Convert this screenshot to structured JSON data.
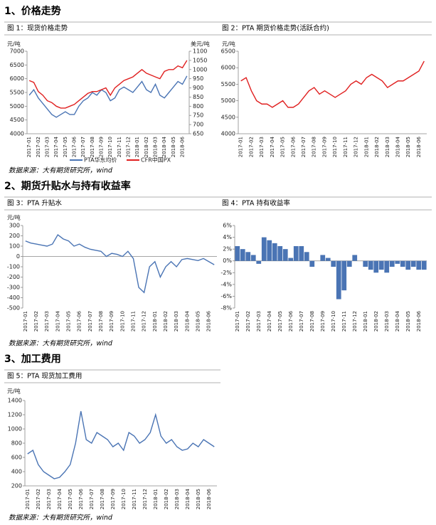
{
  "sections": [
    {
      "heading": "1、价格走势",
      "source": "数据来源：大有期货研究所，wind"
    },
    {
      "heading": "2、期货升贴水与持有收益率",
      "source": "数据来源：大有期货研究所，wind"
    },
    {
      "heading": "3、加工费用",
      "source": "数据来源：大有期货研究所，wind"
    }
  ],
  "chart_data": [
    {
      "type": "line",
      "title": "图 1：现货价格走势",
      "unit": "元/吨",
      "y2unit": "美元/吨",
      "categories": [
        "2017-01",
        null,
        "2017-02",
        null,
        "2017-03",
        null,
        "2017-04",
        null,
        "2017-05",
        null,
        "2017-06",
        null,
        "2017-07",
        null,
        "2017-08",
        null,
        "2017-09",
        null,
        "2017-10",
        null,
        "2017-11",
        null,
        "2017-12",
        null,
        "2018-01",
        null,
        "2018-02",
        null,
        "2018-03",
        null,
        "2018-04",
        null,
        "2018-05",
        null,
        "2018-06",
        null
      ],
      "series": [
        {
          "name": "PTA华东均价",
          "color": "#4a74b4",
          "values": [
            5400,
            5600,
            5300,
            5100,
            4900,
            4700,
            4600,
            4700,
            4800,
            4700,
            4700,
            5000,
            5200,
            5300,
            5500,
            5400,
            5600,
            5500,
            5200,
            5300,
            5600,
            5700,
            5600,
            5500,
            5700,
            5900,
            5600,
            5500,
            5800,
            5400,
            5300,
            5500,
            5700,
            5900,
            5800,
            6100
          ]
        },
        {
          "name": "CFR中国PX",
          "color": "#e02020",
          "axis": "y2",
          "values": [
            940,
            930,
            880,
            860,
            830,
            820,
            800,
            790,
            790,
            800,
            810,
            830,
            850,
            870,
            880,
            880,
            890,
            900,
            860,
            900,
            920,
            940,
            950,
            960,
            980,
            1000,
            980,
            970,
            960,
            950,
            990,
            1000,
            1000,
            1020,
            1010,
            1050
          ]
        }
      ],
      "ylim": [
        4000,
        7000
      ],
      "yticks": [
        4000,
        4500,
        5000,
        5500,
        6000,
        6500,
        7000
      ],
      "y2lim": [
        650,
        1100
      ],
      "y2ticks": [
        650,
        700,
        750,
        800,
        850,
        900,
        950,
        1000,
        1050,
        1100
      ]
    },
    {
      "type": "line",
      "title": "图 2：PTA 期货价格走势(活跃合约)",
      "unit": "元/吨",
      "color": "#e02020",
      "categories": [
        "2017-01",
        null,
        "2017-02",
        null,
        "2017-03",
        null,
        "2017-04",
        null,
        "2017-05",
        null,
        "2017-06",
        null,
        "2017-07",
        null,
        "2017-08",
        null,
        "2017-09",
        null,
        "2017-10",
        null,
        "2017-11",
        null,
        "2017-12",
        null,
        "2018-01",
        null,
        "2018-02",
        null,
        "2018-03",
        null,
        "2018-04",
        null,
        "2018-05",
        null,
        "2018-06",
        null
      ],
      "values": [
        5600,
        5700,
        5300,
        5000,
        4900,
        4900,
        4800,
        4900,
        5000,
        4800,
        4800,
        4900,
        5100,
        5300,
        5400,
        5200,
        5300,
        5200,
        5100,
        5200,
        5300,
        5500,
        5600,
        5500,
        5700,
        5800,
        5700,
        5600,
        5400,
        5500,
        5600,
        5600,
        5700,
        5800,
        5900,
        6200
      ],
      "ylim": [
        4000,
        6500
      ],
      "yticks": [
        4000,
        4500,
        5000,
        5500,
        6000,
        6500
      ]
    },
    {
      "type": "line",
      "title": "图 3：PTA 升贴水",
      "unit": "元/吨",
      "color": "#4a74b4",
      "categories": [
        "2017-01",
        null,
        "2017-02",
        null,
        "2017-03",
        null,
        "2017-04",
        null,
        "2017-05",
        null,
        "2017-06",
        null,
        "2017-07",
        null,
        "2017-08",
        null,
        "2017-09",
        null,
        "2017-10",
        null,
        "2017-11",
        null,
        "2017-12",
        null,
        "2018-01",
        null,
        "2018-02",
        null,
        "2018-03",
        null,
        "2018-04",
        null,
        "2018-05",
        null,
        "2018-06",
        null
      ],
      "values": [
        150,
        130,
        120,
        110,
        100,
        120,
        210,
        170,
        150,
        100,
        120,
        90,
        70,
        60,
        50,
        0,
        30,
        20,
        0,
        50,
        -20,
        -300,
        -350,
        -100,
        -50,
        -200,
        -100,
        -50,
        -100,
        -30,
        -20,
        -30,
        -40,
        -20,
        -50,
        -80
      ],
      "ylim": [
        -500,
        300
      ],
      "yticks": [
        -500,
        -400,
        -300,
        -200,
        -100,
        0,
        100,
        200,
        300
      ]
    },
    {
      "type": "bar",
      "title": "图 4：PTA 持有收益率",
      "color": "#4a74b4",
      "categories": [
        "2017-01",
        null,
        "2017-02",
        null,
        "2017-03",
        null,
        "2017-04",
        null,
        "2017-05",
        null,
        "2017-06",
        null,
        "2017-07",
        null,
        "2017-08",
        null,
        "2017-09",
        null,
        "2017-10",
        null,
        "2017-11",
        null,
        "2017-12",
        null,
        "2018-01",
        null,
        "2018-02",
        null,
        "2018-03",
        null,
        "2018-04",
        null,
        "2018-05",
        null,
        "2018-06",
        null
      ],
      "values": [
        2.5,
        2,
        1.5,
        1,
        -0.5,
        4,
        3.5,
        3,
        2.5,
        2,
        0.5,
        2.5,
        2.5,
        1.5,
        -1,
        0,
        1,
        0.5,
        -1,
        -6.5,
        -5,
        -1,
        1,
        0,
        -1,
        -1.5,
        -2,
        -1.5,
        -2,
        -1,
        -0.5,
        -1,
        -1.5,
        -1,
        -1.5,
        -1.5
      ],
      "ylim": [
        -8,
        6
      ],
      "yticks": [
        {
          "value": -8,
          "label": "-8%"
        },
        {
          "value": -6,
          "label": "-6%"
        },
        {
          "value": -4,
          "label": "-4%"
        },
        {
          "value": -2,
          "label": "-2%"
        },
        {
          "value": 0,
          "label": "0%"
        },
        {
          "value": 2,
          "label": "2%"
        },
        {
          "value": 4,
          "label": "4%"
        },
        {
          "value": 6,
          "label": "6%"
        }
      ]
    },
    {
      "type": "line",
      "title": "图 5：PTA 现货加工费用",
      "unit": "元/吨",
      "color": "#4a74b4",
      "categories": [
        "2017-01",
        null,
        "2017-02",
        null,
        "2017-03",
        null,
        "2017-04",
        null,
        "2017-05",
        null,
        "2017-06",
        null,
        "2017-07",
        null,
        "2017-08",
        null,
        "2017-09",
        null,
        "2017-10",
        null,
        "2017-11",
        null,
        "2017-12",
        null,
        "2018-01",
        null,
        "2018-02",
        null,
        "2018-03",
        null,
        "2018-04",
        null,
        "2018-05",
        null,
        "2018-06",
        null
      ],
      "values": [
        650,
        700,
        500,
        400,
        350,
        300,
        320,
        400,
        500,
        800,
        1250,
        850,
        800,
        950,
        900,
        850,
        750,
        800,
        700,
        950,
        900,
        800,
        850,
        950,
        1200,
        900,
        800,
        850,
        750,
        700,
        720,
        800,
        750,
        850,
        800,
        750
      ],
      "ylim": [
        200,
        1400
      ],
      "yticks": [
        200,
        400,
        600,
        800,
        1000,
        1200,
        1400
      ]
    }
  ]
}
